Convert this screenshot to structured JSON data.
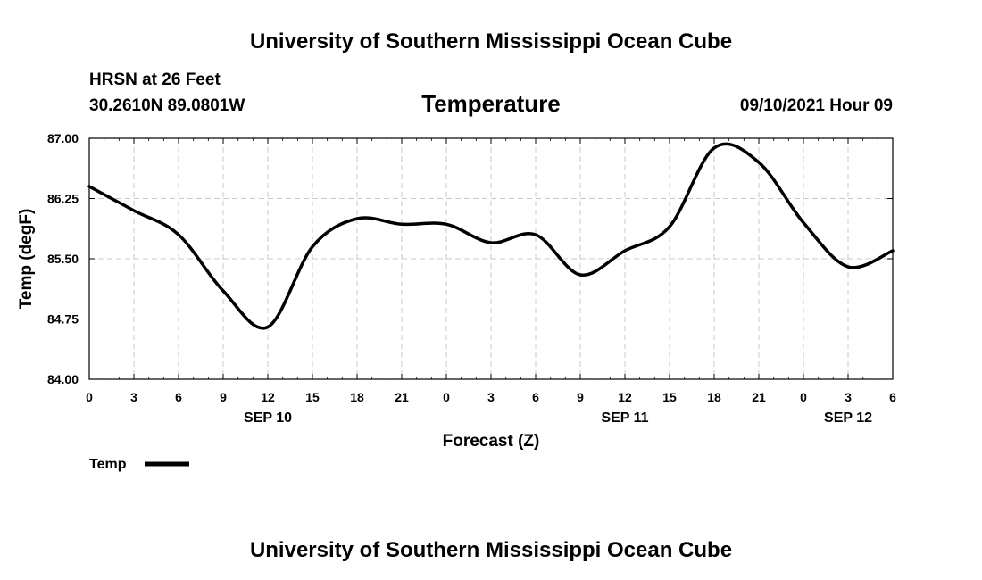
{
  "header": {
    "title_top": "University of Southern Mississippi Ocean Cube",
    "title_bottom": "University of Southern Mississippi Ocean Cube",
    "station": "HRSN at 26 Feet",
    "location": "30.2610N  89.0801W",
    "datetime": "09/10/2021 Hour 09"
  },
  "colors": {
    "line": "#000000",
    "grid": "#c8c8c8",
    "frame": "#000000"
  },
  "chart_data": {
    "type": "line",
    "title": "Temperature",
    "xlabel": "Forecast (Z)",
    "ylabel": "Temp (degF)",
    "xlim": [
      0,
      54
    ],
    "ylim": [
      84.0,
      87.0
    ],
    "grid": true,
    "x_ticks": [
      0,
      3,
      6,
      9,
      12,
      15,
      18,
      21,
      24,
      27,
      30,
      33,
      36,
      39,
      42,
      45,
      48,
      51,
      54
    ],
    "x_tick_labels": [
      "0",
      "3",
      "6",
      "9",
      "12",
      "15",
      "18",
      "21",
      "0",
      "3",
      "6",
      "9",
      "12",
      "15",
      "18",
      "21",
      "0",
      "3",
      "6"
    ],
    "y_ticks": [
      84.0,
      84.75,
      85.5,
      86.25,
      87.0
    ],
    "y_tick_labels": [
      "84.00",
      "84.75",
      "85.50",
      "86.25",
      "87.00"
    ],
    "date_labels": [
      {
        "x": 12,
        "label": "SEP 10"
      },
      {
        "x": 36,
        "label": "SEP 11"
      },
      {
        "x": 51,
        "label": "SEP 12"
      }
    ],
    "legend_position": "bottom-left",
    "series": [
      {
        "name": "Temp",
        "x": [
          0,
          3,
          6,
          9,
          12,
          15,
          18,
          21,
          24,
          27,
          30,
          33,
          36,
          39,
          42,
          45,
          48,
          51,
          54
        ],
        "values": [
          86.4,
          86.1,
          85.8,
          85.1,
          84.65,
          85.65,
          86.0,
          85.93,
          85.93,
          85.7,
          85.8,
          85.3,
          85.6,
          85.9,
          86.88,
          86.7,
          85.95,
          85.4,
          85.6
        ]
      }
    ]
  }
}
